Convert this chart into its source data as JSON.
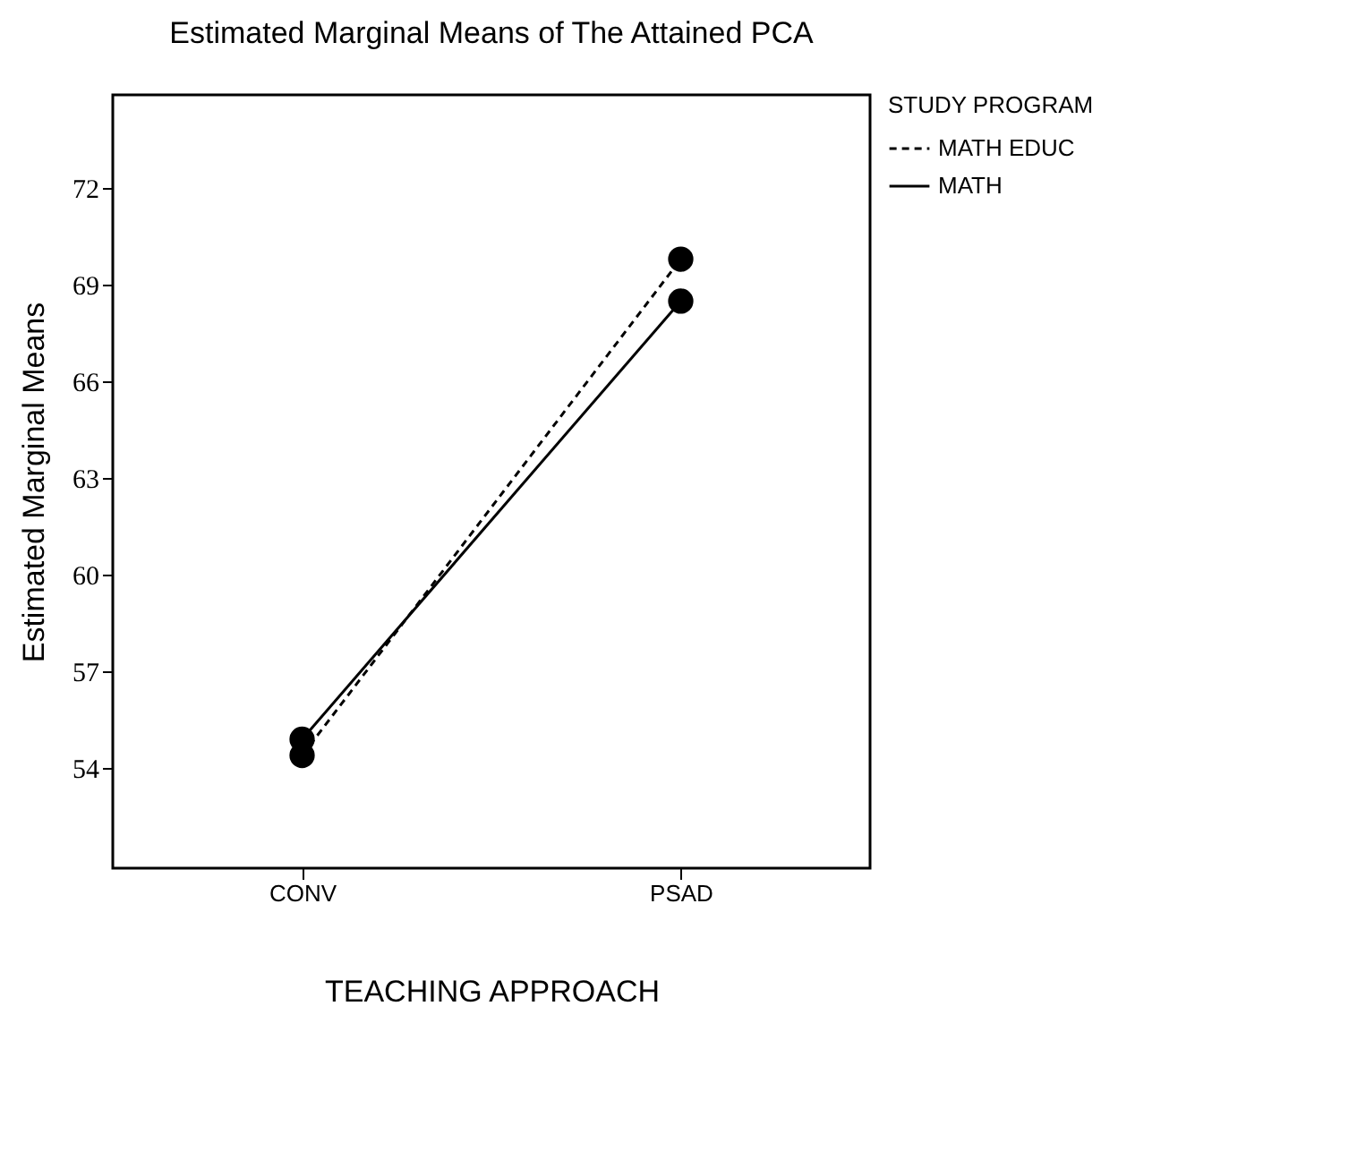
{
  "chart_data": {
    "type": "line",
    "title": "Estimated Marginal Means of The Attained PCA",
    "xlabel": "TEACHING APPROACH",
    "ylabel": "Estimated Marginal Means",
    "legend_title": "STUDY PROGRAM",
    "categories": [
      "CONV",
      "PSAD"
    ],
    "series": [
      {
        "name": "MATH EDUC",
        "color": "#000000",
        "line_style": "dashed",
        "values": [
          54.4,
          69.8
        ]
      },
      {
        "name": "MATH",
        "color": "#000000",
        "line_style": "solid",
        "values": [
          54.9,
          68.5
        ]
      }
    ],
    "ylim": [
      50.9,
      74.9
    ],
    "yticks": [
      54,
      57,
      60,
      63,
      66,
      69,
      72
    ],
    "grid": false,
    "legend": "top right",
    "marker": "circle"
  }
}
